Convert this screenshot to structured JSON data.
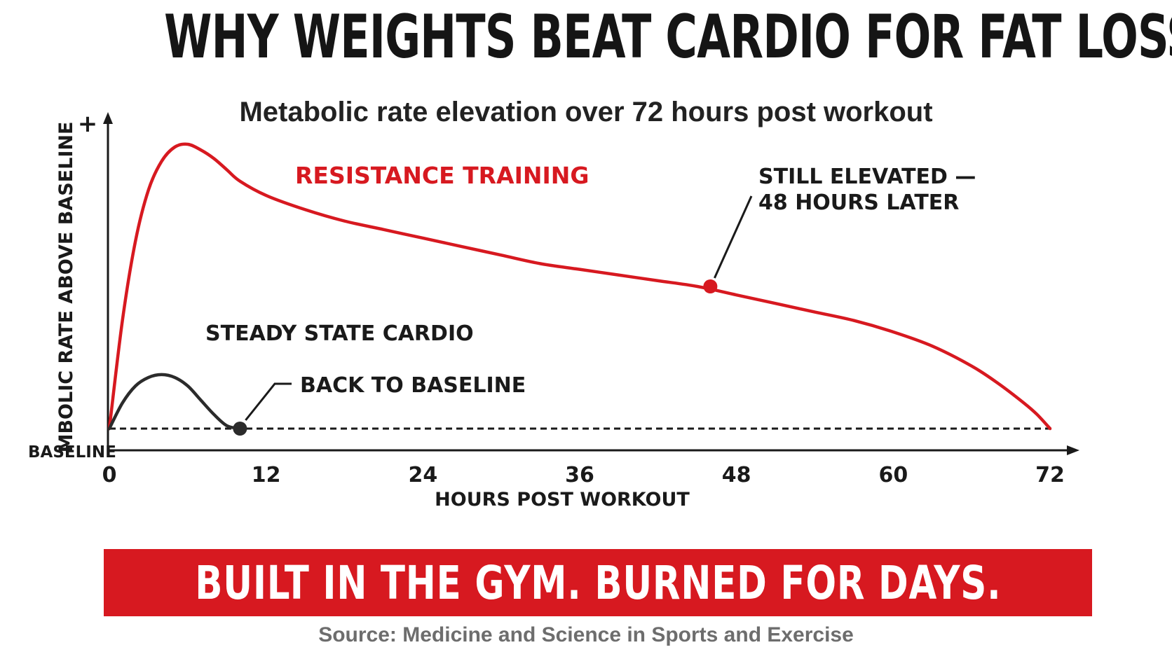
{
  "header": {
    "title": "WHY WEIGHTS BEAT CARDIO FOR FAT LOSS",
    "subtitle": "Metabolic rate elevation over 72 hours post workout"
  },
  "chart_data": {
    "type": "line",
    "xlabel": "HOURS POST WORKOUT",
    "ylabel": "MBOLIC RATE ABOVE BASELINE",
    "y_axis_top_marker": "+",
    "baseline_label": "BASELINE",
    "xlim": [
      0,
      72
    ],
    "x_ticks": [
      "0",
      "12",
      "24",
      "36",
      "48",
      "60",
      "72"
    ],
    "ylim": [
      0,
      1
    ],
    "grid": false,
    "series": [
      {
        "name": "RESISTANCE TRAINING",
        "color": "#d71920",
        "x": [
          0,
          1,
          2,
          3,
          4,
          5,
          6,
          7,
          8,
          9,
          10,
          12,
          15,
          18,
          21,
          24,
          27,
          30,
          33,
          36,
          39,
          42,
          45,
          48,
          51,
          54,
          57,
          60,
          63,
          66,
          68,
          70,
          71,
          72
        ],
        "y": [
          0,
          0.38,
          0.66,
          0.84,
          0.94,
          0.99,
          1.0,
          0.98,
          0.95,
          0.91,
          0.87,
          0.82,
          0.77,
          0.73,
          0.7,
          0.67,
          0.64,
          0.61,
          0.58,
          0.56,
          0.54,
          0.52,
          0.5,
          0.47,
          0.44,
          0.41,
          0.38,
          0.34,
          0.29,
          0.22,
          0.16,
          0.09,
          0.05,
          0.0
        ]
      },
      {
        "name": "STEADY STATE CARDIO",
        "color": "#2b2b2b",
        "x": [
          0,
          1,
          2,
          3,
          4,
          5,
          6,
          7,
          8,
          9,
          10
        ],
        "y": [
          0,
          0.09,
          0.15,
          0.18,
          0.19,
          0.18,
          0.15,
          0.1,
          0.05,
          0.01,
          0
        ]
      }
    ],
    "annotations": [
      {
        "text": "STILL ELEVATED —",
        "text2": "48 HOURS LATER",
        "x": 46,
        "y": 0.5,
        "color": "#d71920"
      },
      {
        "text": "BACK TO BASELINE",
        "x": 10,
        "y": 0,
        "color": "#2b2b2b"
      }
    ]
  },
  "footer": {
    "banner": "BUILT IN THE GYM. BURNED FOR DAYS.",
    "source": "Source: Medicine and Science in Sports and Exercise"
  },
  "colors": {
    "accent": "#d71920",
    "ink": "#1a1a1a",
    "source_gray": "#6d6d6d"
  }
}
